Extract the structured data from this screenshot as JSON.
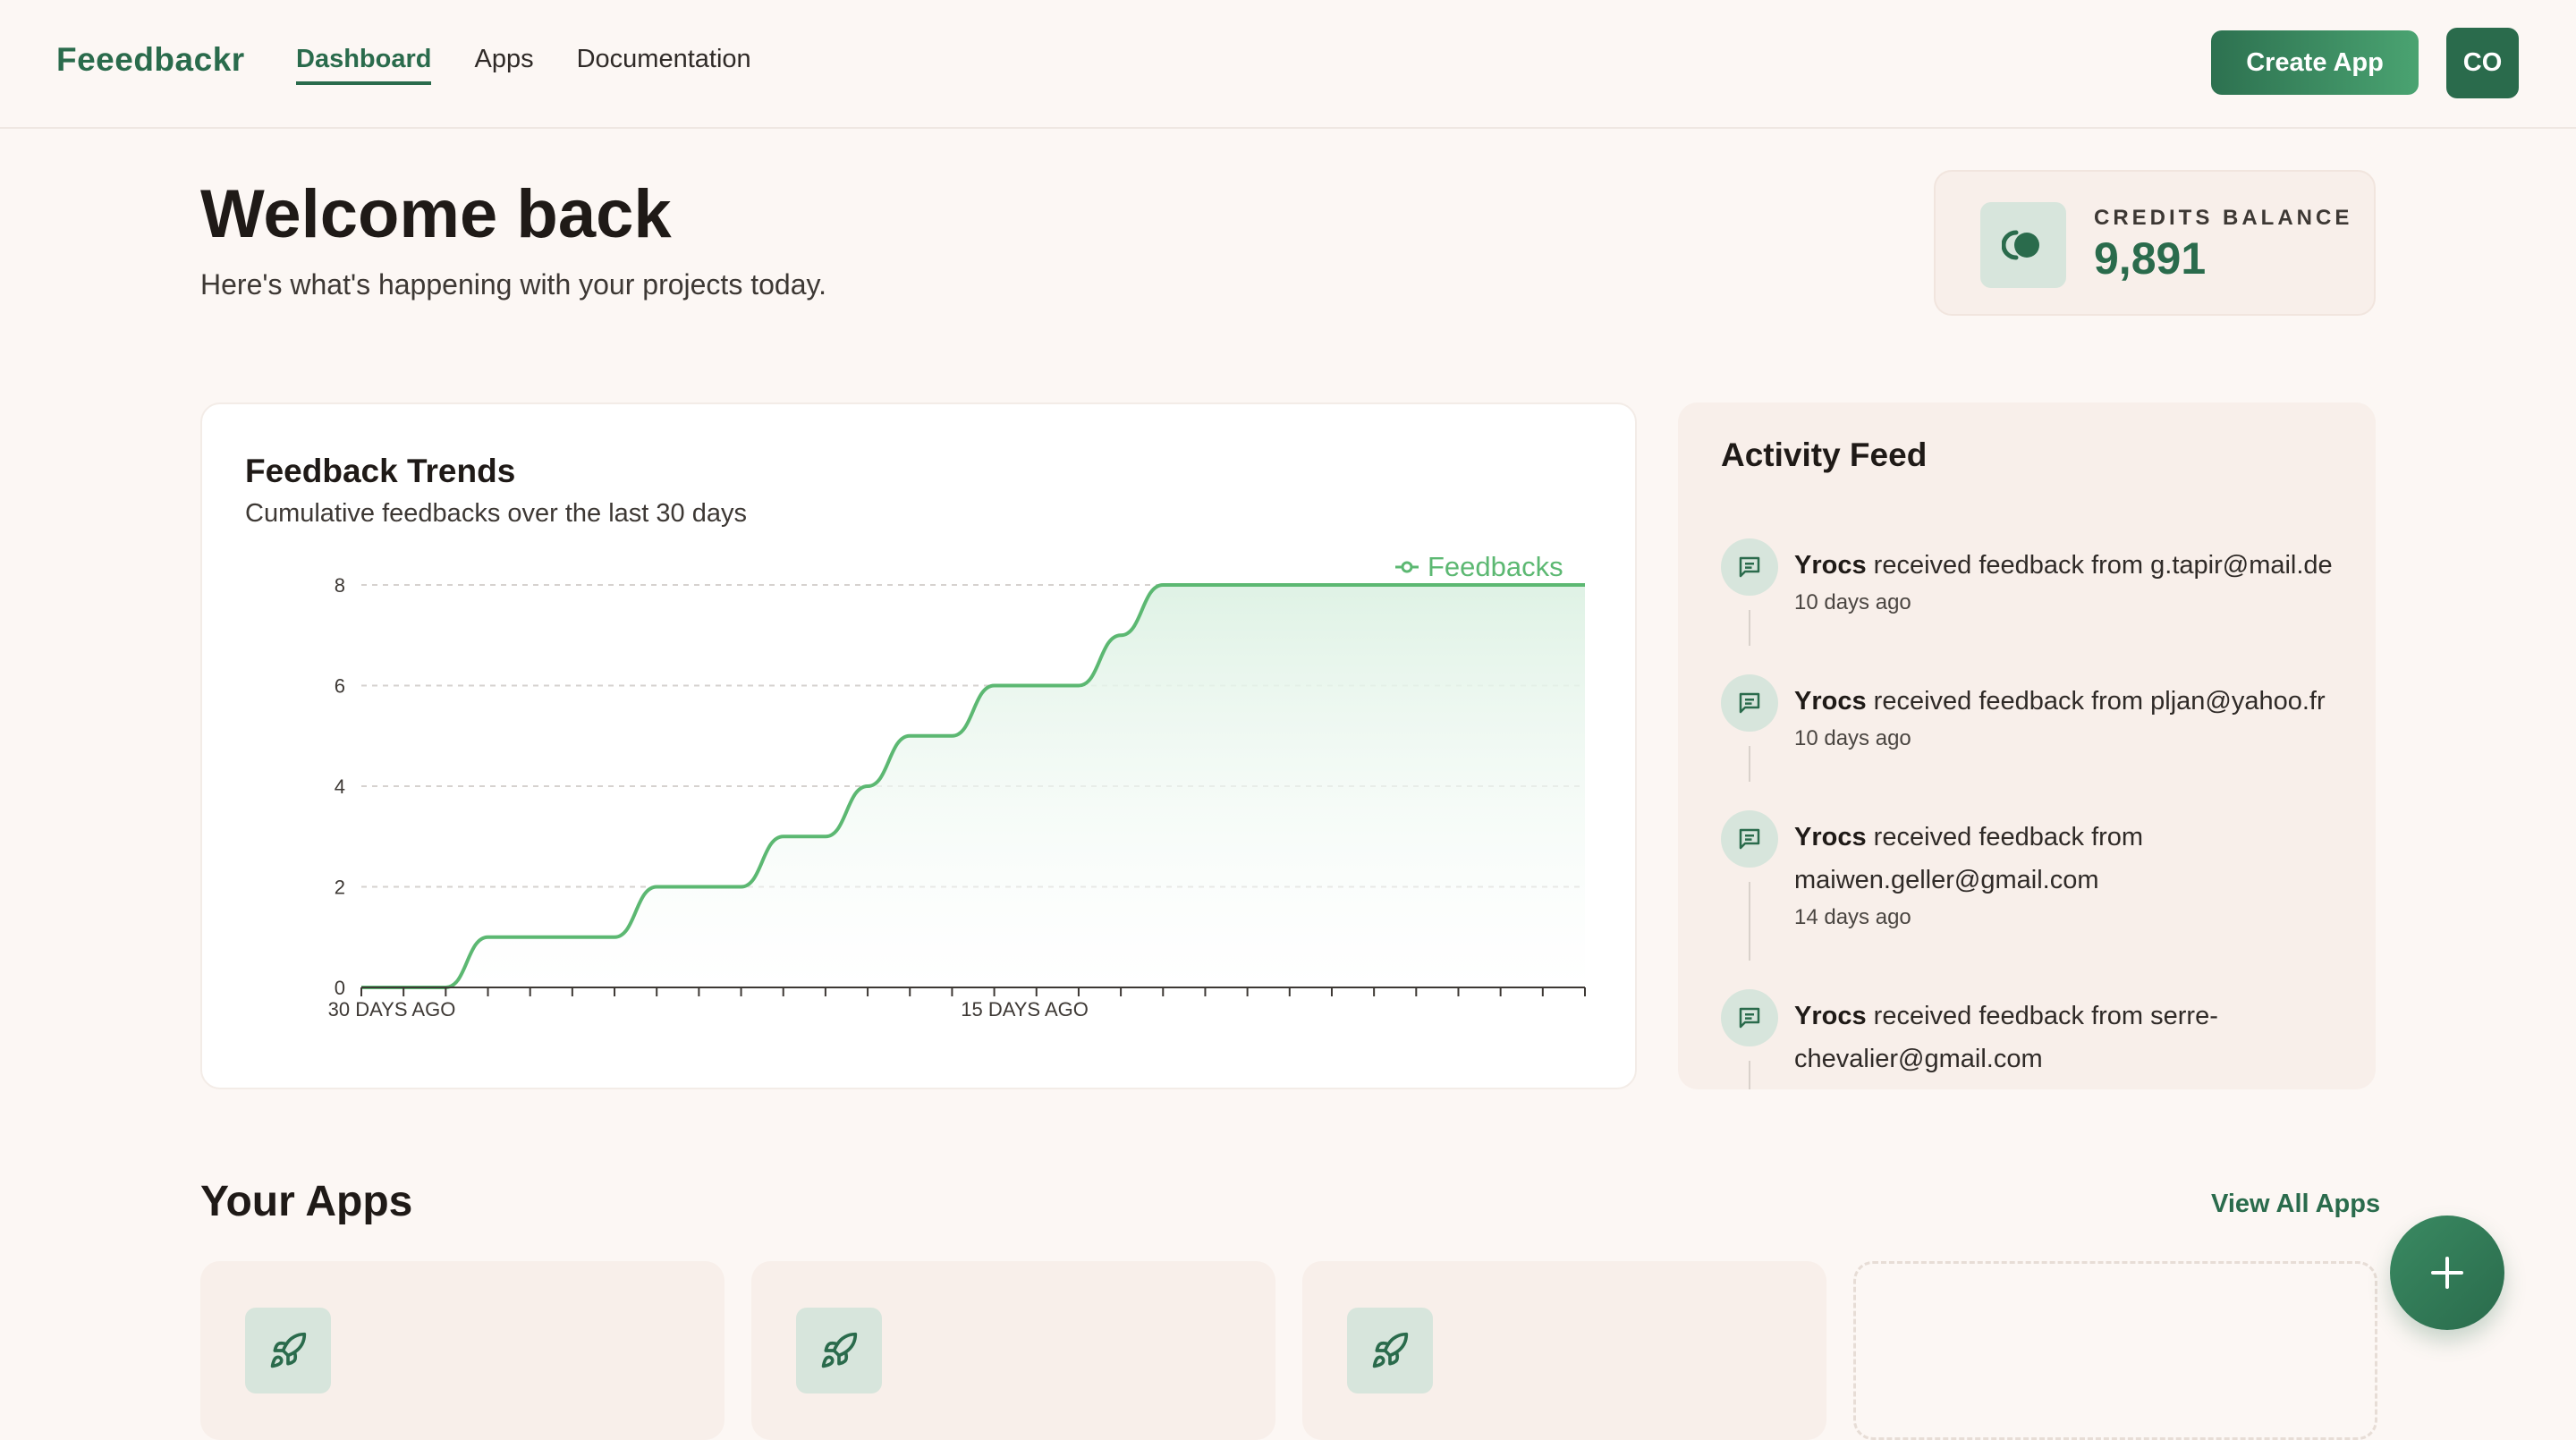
{
  "header": {
    "brand": "Feeedbackr",
    "nav": [
      "Dashboard",
      "Apps",
      "Documentation"
    ],
    "active_nav": "Dashboard",
    "create_label": "Create App",
    "avatar_initials": "CO"
  },
  "welcome": {
    "title": "Welcome back",
    "subtitle": "Here's what's happening with your projects today."
  },
  "credits": {
    "label": "CREDITS BALANCE",
    "value": "9,891"
  },
  "trends": {
    "title": "Feedback Trends",
    "subtitle": "Cumulative feedbacks over the last 30 days"
  },
  "chart_data": {
    "type": "area",
    "x": [
      30,
      29,
      28,
      27,
      26,
      25,
      24,
      23,
      22,
      21,
      20,
      19,
      18,
      17,
      16,
      15,
      14,
      13,
      12,
      11,
      10,
      9,
      8,
      7,
      6,
      5,
      4,
      3,
      2,
      1
    ],
    "x_tick_labels": [
      {
        "x": 30,
        "label": "30 DAYS AGO"
      },
      {
        "x": 15,
        "label": "15 DAYS AGO"
      }
    ],
    "series": [
      {
        "name": "Feedbacks",
        "values": [
          0,
          0,
          0,
          1,
          1,
          1,
          1,
          2,
          2,
          2,
          3,
          3,
          4,
          5,
          5,
          6,
          6,
          6,
          7,
          8,
          8,
          8,
          8,
          8,
          8,
          8,
          8,
          8,
          8,
          8
        ]
      }
    ],
    "ylim": [
      0,
      8
    ],
    "y_ticks": [
      0,
      2,
      4,
      6,
      8
    ],
    "grid": true,
    "legend": "top-right",
    "colors": {
      "line": "#5cb872",
      "fill": "#dff2e5"
    }
  },
  "activity": {
    "title": "Activity Feed",
    "items": [
      {
        "app": "Yrocs",
        "text": " received feedback from g.tapir@mail.de",
        "time": "10 days ago"
      },
      {
        "app": "Yrocs",
        "text": " received feedback from pljan@yahoo.fr",
        "time": "10 days ago"
      },
      {
        "app": "Yrocs",
        "text": " received feedback from maiwen.geller@gmail.com",
        "time": "14 days ago"
      },
      {
        "app": "Yrocs",
        "text": " received feedback from serre-chevalier@gmail.com",
        "time": ""
      }
    ]
  },
  "apps": {
    "title": "Your Apps",
    "view_all": "View All Apps"
  },
  "icons": {
    "credits": "coins-icon",
    "feed": "message-icon",
    "app": "rocket-icon",
    "fab": "plus-icon"
  },
  "colors": {
    "brand": "#2a6b4c",
    "accent": "#5cb872",
    "background": "#fcf7f4"
  }
}
